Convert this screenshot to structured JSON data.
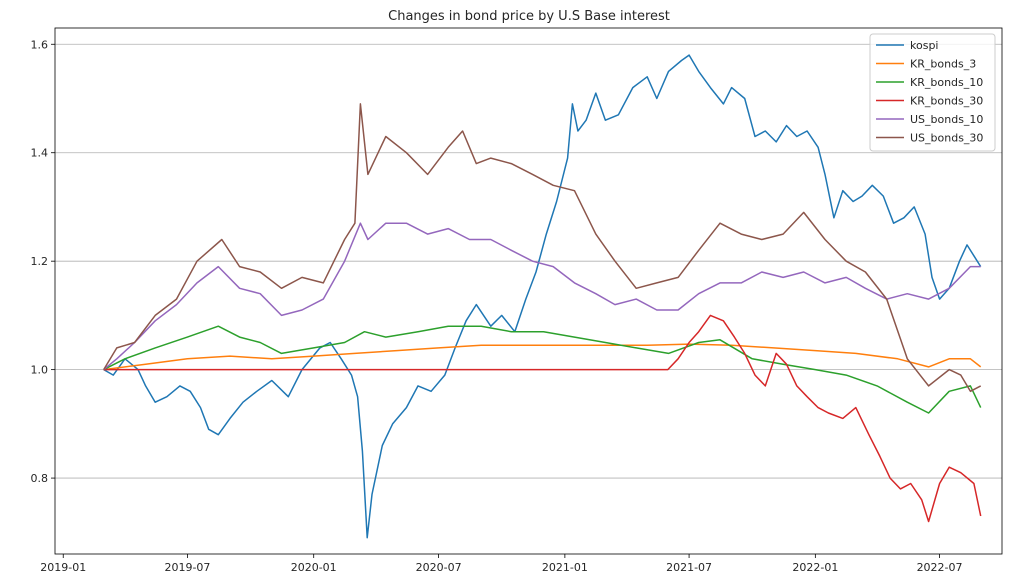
{
  "chart_data": {
    "type": "line",
    "title": "Changes in bond price by U.S Base interest",
    "xlabel": "",
    "ylabel": "",
    "x_ticks": [
      "2019-01",
      "2019-07",
      "2020-01",
      "2020-07",
      "2021-01",
      "2021-07",
      "2022-01",
      "2022-07"
    ],
    "y_ticks": [
      0.8,
      1.0,
      1.2,
      1.4,
      1.6
    ],
    "xlim": [
      "2018-12-20",
      "2022-09-30"
    ],
    "ylim": [
      0.66,
      1.63
    ],
    "grid": "horizontal",
    "legend_position": "top-right",
    "series": [
      {
        "name": "kospi",
        "color": "#1f77b4",
        "points": [
          [
            "2019-03-01",
            1.0
          ],
          [
            "2019-03-15",
            0.99
          ],
          [
            "2019-04-01",
            1.02
          ],
          [
            "2019-04-20",
            1.0
          ],
          [
            "2019-05-01",
            0.97
          ],
          [
            "2019-05-15",
            0.94
          ],
          [
            "2019-06-01",
            0.95
          ],
          [
            "2019-06-20",
            0.97
          ],
          [
            "2019-07-05",
            0.96
          ],
          [
            "2019-07-20",
            0.93
          ],
          [
            "2019-08-01",
            0.89
          ],
          [
            "2019-08-15",
            0.88
          ],
          [
            "2019-09-01",
            0.91
          ],
          [
            "2019-09-20",
            0.94
          ],
          [
            "2019-10-10",
            0.96
          ],
          [
            "2019-11-01",
            0.98
          ],
          [
            "2019-11-25",
            0.95
          ],
          [
            "2019-12-15",
            1.0
          ],
          [
            "2020-01-10",
            1.04
          ],
          [
            "2020-01-25",
            1.05
          ],
          [
            "2020-02-10",
            1.02
          ],
          [
            "2020-02-25",
            0.99
          ],
          [
            "2020-03-05",
            0.95
          ],
          [
            "2020-03-12",
            0.85
          ],
          [
            "2020-03-19",
            0.69
          ],
          [
            "2020-03-26",
            0.77
          ],
          [
            "2020-04-10",
            0.86
          ],
          [
            "2020-04-25",
            0.9
          ],
          [
            "2020-05-15",
            0.93
          ],
          [
            "2020-06-01",
            0.97
          ],
          [
            "2020-06-20",
            0.96
          ],
          [
            "2020-07-10",
            0.99
          ],
          [
            "2020-07-25",
            1.04
          ],
          [
            "2020-08-10",
            1.09
          ],
          [
            "2020-08-25",
            1.12
          ],
          [
            "2020-09-15",
            1.08
          ],
          [
            "2020-10-01",
            1.1
          ],
          [
            "2020-10-20",
            1.07
          ],
          [
            "2020-11-05",
            1.13
          ],
          [
            "2020-11-20",
            1.18
          ],
          [
            "2020-12-05",
            1.25
          ],
          [
            "2020-12-20",
            1.31
          ],
          [
            "2021-01-05",
            1.39
          ],
          [
            "2021-01-12",
            1.49
          ],
          [
            "2021-01-20",
            1.44
          ],
          [
            "2021-02-01",
            1.46
          ],
          [
            "2021-02-15",
            1.51
          ],
          [
            "2021-03-01",
            1.46
          ],
          [
            "2021-03-20",
            1.47
          ],
          [
            "2021-04-10",
            1.52
          ],
          [
            "2021-05-01",
            1.54
          ],
          [
            "2021-05-15",
            1.5
          ],
          [
            "2021-06-01",
            1.55
          ],
          [
            "2021-06-20",
            1.57
          ],
          [
            "2021-07-01",
            1.58
          ],
          [
            "2021-07-15",
            1.55
          ],
          [
            "2021-08-01",
            1.52
          ],
          [
            "2021-08-20",
            1.49
          ],
          [
            "2021-09-01",
            1.52
          ],
          [
            "2021-09-20",
            1.5
          ],
          [
            "2021-10-05",
            1.43
          ],
          [
            "2021-10-20",
            1.44
          ],
          [
            "2021-11-05",
            1.42
          ],
          [
            "2021-11-20",
            1.45
          ],
          [
            "2021-12-05",
            1.43
          ],
          [
            "2021-12-20",
            1.44
          ],
          [
            "2022-01-05",
            1.41
          ],
          [
            "2022-01-15",
            1.36
          ],
          [
            "2022-01-28",
            1.28
          ],
          [
            "2022-02-10",
            1.33
          ],
          [
            "2022-02-25",
            1.31
          ],
          [
            "2022-03-10",
            1.32
          ],
          [
            "2022-03-25",
            1.34
          ],
          [
            "2022-04-10",
            1.32
          ],
          [
            "2022-04-25",
            1.27
          ],
          [
            "2022-05-10",
            1.28
          ],
          [
            "2022-05-25",
            1.3
          ],
          [
            "2022-06-10",
            1.25
          ],
          [
            "2022-06-20",
            1.17
          ],
          [
            "2022-07-01",
            1.13
          ],
          [
            "2022-07-15",
            1.15
          ],
          [
            "2022-07-30",
            1.2
          ],
          [
            "2022-08-10",
            1.23
          ],
          [
            "2022-08-20",
            1.21
          ],
          [
            "2022-08-30",
            1.19
          ]
        ]
      },
      {
        "name": "KR_bonds_3",
        "color": "#ff7f0e",
        "points": [
          [
            "2019-03-01",
            1.0
          ],
          [
            "2019-05-01",
            1.01
          ],
          [
            "2019-07-01",
            1.02
          ],
          [
            "2019-09-01",
            1.025
          ],
          [
            "2019-11-01",
            1.02
          ],
          [
            "2020-01-01",
            1.025
          ],
          [
            "2020-03-01",
            1.03
          ],
          [
            "2020-05-01",
            1.035
          ],
          [
            "2020-07-01",
            1.04
          ],
          [
            "2020-09-01",
            1.045
          ],
          [
            "2020-11-01",
            1.045
          ],
          [
            "2021-01-01",
            1.045
          ],
          [
            "2021-03-01",
            1.045
          ],
          [
            "2021-05-01",
            1.045
          ],
          [
            "2021-07-01",
            1.047
          ],
          [
            "2021-09-01",
            1.045
          ],
          [
            "2021-11-01",
            1.04
          ],
          [
            "2022-01-01",
            1.035
          ],
          [
            "2022-03-01",
            1.03
          ],
          [
            "2022-05-01",
            1.02
          ],
          [
            "2022-06-15",
            1.005
          ],
          [
            "2022-07-15",
            1.02
          ],
          [
            "2022-08-15",
            1.02
          ],
          [
            "2022-08-30",
            1.005
          ]
        ]
      },
      {
        "name": "KR_bonds_10",
        "color": "#2ca02c",
        "points": [
          [
            "2019-03-01",
            1.0
          ],
          [
            "2019-04-01",
            1.02
          ],
          [
            "2019-05-15",
            1.04
          ],
          [
            "2019-07-01",
            1.06
          ],
          [
            "2019-08-15",
            1.08
          ],
          [
            "2019-09-15",
            1.06
          ],
          [
            "2019-10-15",
            1.05
          ],
          [
            "2019-11-15",
            1.03
          ],
          [
            "2020-01-01",
            1.04
          ],
          [
            "2020-02-15",
            1.05
          ],
          [
            "2020-03-15",
            1.07
          ],
          [
            "2020-04-15",
            1.06
          ],
          [
            "2020-06-01",
            1.07
          ],
          [
            "2020-07-15",
            1.08
          ],
          [
            "2020-09-01",
            1.08
          ],
          [
            "2020-10-15",
            1.07
          ],
          [
            "2020-12-01",
            1.07
          ],
          [
            "2021-01-15",
            1.06
          ],
          [
            "2021-03-01",
            1.05
          ],
          [
            "2021-04-15",
            1.04
          ],
          [
            "2021-06-01",
            1.03
          ],
          [
            "2021-07-15",
            1.05
          ],
          [
            "2021-08-15",
            1.055
          ],
          [
            "2021-10-01",
            1.02
          ],
          [
            "2021-11-15",
            1.01
          ],
          [
            "2022-01-01",
            1.0
          ],
          [
            "2022-02-15",
            0.99
          ],
          [
            "2022-04-01",
            0.97
          ],
          [
            "2022-05-15",
            0.94
          ],
          [
            "2022-06-15",
            0.92
          ],
          [
            "2022-07-15",
            0.96
          ],
          [
            "2022-08-15",
            0.97
          ],
          [
            "2022-08-30",
            0.93
          ]
        ]
      },
      {
        "name": "KR_bonds_30",
        "color": "#d62728",
        "points": [
          [
            "2019-03-01",
            1.0
          ],
          [
            "2021-05-31",
            1.0
          ],
          [
            "2021-06-15",
            1.02
          ],
          [
            "2021-07-01",
            1.05
          ],
          [
            "2021-07-15",
            1.07
          ],
          [
            "2021-08-01",
            1.1
          ],
          [
            "2021-08-20",
            1.09
          ],
          [
            "2021-09-05",
            1.06
          ],
          [
            "2021-09-20",
            1.03
          ],
          [
            "2021-10-05",
            0.99
          ],
          [
            "2021-10-20",
            0.97
          ],
          [
            "2021-11-05",
            1.03
          ],
          [
            "2021-11-20",
            1.01
          ],
          [
            "2021-12-05",
            0.97
          ],
          [
            "2021-12-20",
            0.95
          ],
          [
            "2022-01-05",
            0.93
          ],
          [
            "2022-01-20",
            0.92
          ],
          [
            "2022-02-10",
            0.91
          ],
          [
            "2022-03-01",
            0.93
          ],
          [
            "2022-03-20",
            0.88
          ],
          [
            "2022-04-05",
            0.84
          ],
          [
            "2022-04-20",
            0.8
          ],
          [
            "2022-05-05",
            0.78
          ],
          [
            "2022-05-20",
            0.79
          ],
          [
            "2022-06-05",
            0.76
          ],
          [
            "2022-06-15",
            0.72
          ],
          [
            "2022-07-01",
            0.79
          ],
          [
            "2022-07-15",
            0.82
          ],
          [
            "2022-08-01",
            0.81
          ],
          [
            "2022-08-20",
            0.79
          ],
          [
            "2022-08-30",
            0.73
          ]
        ]
      },
      {
        "name": "US_bonds_10",
        "color": "#9467bd",
        "points": [
          [
            "2019-03-01",
            1.0
          ],
          [
            "2019-03-20",
            1.02
          ],
          [
            "2019-04-15",
            1.05
          ],
          [
            "2019-05-15",
            1.09
          ],
          [
            "2019-06-15",
            1.12
          ],
          [
            "2019-07-15",
            1.16
          ],
          [
            "2019-08-15",
            1.19
          ],
          [
            "2019-09-15",
            1.15
          ],
          [
            "2019-10-15",
            1.14
          ],
          [
            "2019-11-15",
            1.1
          ],
          [
            "2019-12-15",
            1.11
          ],
          [
            "2020-01-15",
            1.13
          ],
          [
            "2020-02-15",
            1.2
          ],
          [
            "2020-03-09",
            1.27
          ],
          [
            "2020-03-20",
            1.24
          ],
          [
            "2020-04-15",
            1.27
          ],
          [
            "2020-05-15",
            1.27
          ],
          [
            "2020-06-15",
            1.25
          ],
          [
            "2020-07-15",
            1.26
          ],
          [
            "2020-08-15",
            1.24
          ],
          [
            "2020-09-15",
            1.24
          ],
          [
            "2020-10-15",
            1.22
          ],
          [
            "2020-11-15",
            1.2
          ],
          [
            "2020-12-15",
            1.19
          ],
          [
            "2021-01-15",
            1.16
          ],
          [
            "2021-02-15",
            1.14
          ],
          [
            "2021-03-15",
            1.12
          ],
          [
            "2021-04-15",
            1.13
          ],
          [
            "2021-05-15",
            1.11
          ],
          [
            "2021-06-15",
            1.11
          ],
          [
            "2021-07-15",
            1.14
          ],
          [
            "2021-08-15",
            1.16
          ],
          [
            "2021-09-15",
            1.16
          ],
          [
            "2021-10-15",
            1.18
          ],
          [
            "2021-11-15",
            1.17
          ],
          [
            "2021-12-15",
            1.18
          ],
          [
            "2022-01-15",
            1.16
          ],
          [
            "2022-02-15",
            1.17
          ],
          [
            "2022-03-15",
            1.15
          ],
          [
            "2022-04-15",
            1.13
          ],
          [
            "2022-05-15",
            1.14
          ],
          [
            "2022-06-15",
            1.13
          ],
          [
            "2022-07-15",
            1.15
          ],
          [
            "2022-08-15",
            1.19
          ],
          [
            "2022-08-30",
            1.19
          ]
        ]
      },
      {
        "name": "US_bonds_30",
        "color": "#8c564b",
        "points": [
          [
            "2019-03-01",
            1.0
          ],
          [
            "2019-03-20",
            1.04
          ],
          [
            "2019-04-15",
            1.05
          ],
          [
            "2019-05-15",
            1.1
          ],
          [
            "2019-06-15",
            1.13
          ],
          [
            "2019-07-15",
            1.2
          ],
          [
            "2019-08-20",
            1.24
          ],
          [
            "2019-09-15",
            1.19
          ],
          [
            "2019-10-15",
            1.18
          ],
          [
            "2019-11-15",
            1.15
          ],
          [
            "2019-12-15",
            1.17
          ],
          [
            "2020-01-15",
            1.16
          ],
          [
            "2020-02-15",
            1.24
          ],
          [
            "2020-03-01",
            1.27
          ],
          [
            "2020-03-09",
            1.49
          ],
          [
            "2020-03-20",
            1.36
          ],
          [
            "2020-04-15",
            1.43
          ],
          [
            "2020-05-15",
            1.4
          ],
          [
            "2020-06-15",
            1.36
          ],
          [
            "2020-07-15",
            1.41
          ],
          [
            "2020-08-05",
            1.44
          ],
          [
            "2020-08-25",
            1.38
          ],
          [
            "2020-09-15",
            1.39
          ],
          [
            "2020-10-15",
            1.38
          ],
          [
            "2020-11-15",
            1.36
          ],
          [
            "2020-12-15",
            1.34
          ],
          [
            "2021-01-15",
            1.33
          ],
          [
            "2021-02-15",
            1.25
          ],
          [
            "2021-03-15",
            1.2
          ],
          [
            "2021-04-15",
            1.15
          ],
          [
            "2021-05-15",
            1.16
          ],
          [
            "2021-06-15",
            1.17
          ],
          [
            "2021-07-15",
            1.22
          ],
          [
            "2021-08-15",
            1.27
          ],
          [
            "2021-09-15",
            1.25
          ],
          [
            "2021-10-15",
            1.24
          ],
          [
            "2021-11-15",
            1.25
          ],
          [
            "2021-12-15",
            1.29
          ],
          [
            "2022-01-15",
            1.24
          ],
          [
            "2022-02-15",
            1.2
          ],
          [
            "2022-03-15",
            1.18
          ],
          [
            "2022-04-15",
            1.13
          ],
          [
            "2022-05-15",
            1.02
          ],
          [
            "2022-06-15",
            0.97
          ],
          [
            "2022-07-15",
            1.0
          ],
          [
            "2022-08-01",
            0.99
          ],
          [
            "2022-08-15",
            0.96
          ],
          [
            "2022-08-30",
            0.97
          ]
        ]
      }
    ]
  }
}
